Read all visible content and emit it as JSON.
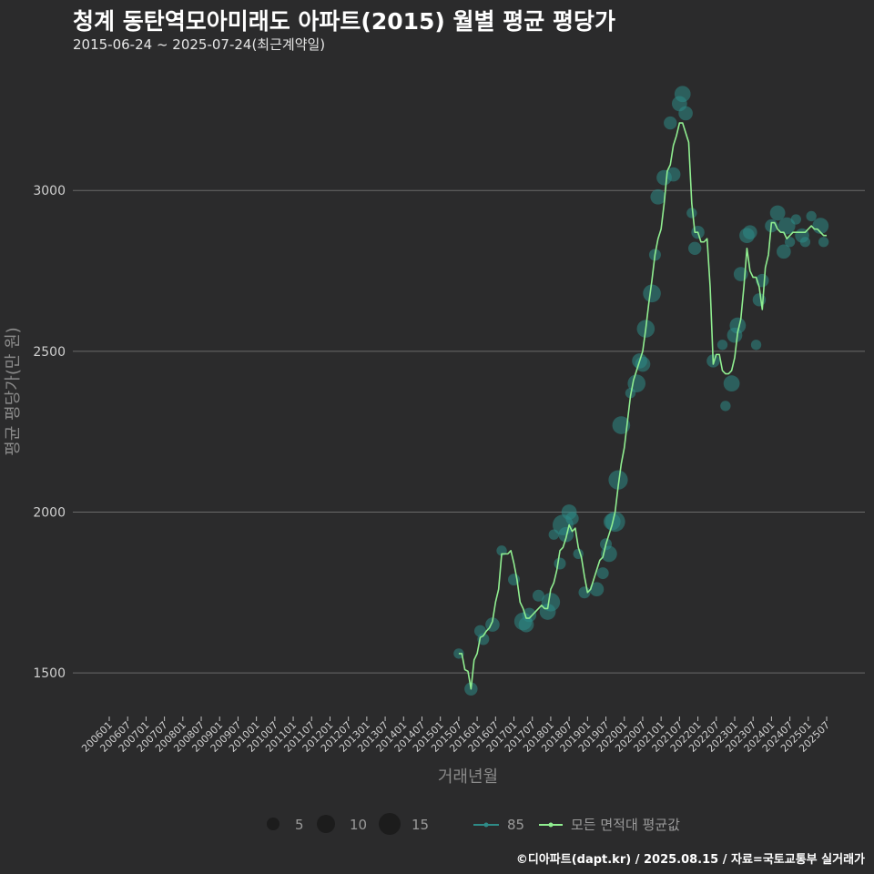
{
  "header": {
    "title": "청계 동탄역모아미래도 아파트(2015) 월별 평균 평당가",
    "subtitle": "2015-06-24 ~ 2025-07-24(최근계약일)"
  },
  "footer": {
    "caption": "©디아파트(dapt.kr) / 2025.08.15 / 자료=국토교통부 실거래가"
  },
  "colors": {
    "background": "#2b2b2c",
    "grid": "#6a6a6a",
    "line": "#90ee90",
    "bubble": "#2e8b87",
    "legend_dot": "#1c1c1c"
  },
  "chart_data": {
    "type": "line",
    "xlabel": "거래년월",
    "ylabel": "평균 평당가(만 원)",
    "ylim": [
      1370,
      3380
    ],
    "yticks": [
      1500,
      2000,
      2500,
      3000
    ],
    "x_start": "2006-01",
    "x_end": "2025-07",
    "xticks": [
      "200601",
      "200607",
      "200701",
      "200707",
      "200801",
      "200807",
      "200901",
      "200907",
      "201001",
      "201007",
      "201101",
      "201107",
      "201201",
      "201207",
      "201301",
      "201307",
      "201401",
      "201407",
      "201501",
      "201507",
      "201601",
      "201607",
      "201701",
      "201707",
      "201801",
      "201807",
      "201901",
      "201907",
      "202001",
      "202007",
      "202101",
      "202107",
      "202201",
      "202207",
      "202301",
      "202307",
      "202401",
      "202407",
      "202501",
      "202507"
    ],
    "legend": {
      "size_entries": [
        5,
        10,
        15
      ],
      "series_labels": [
        "85",
        "모든 면적대 평균값"
      ]
    },
    "series": [
      {
        "name": "모든 면적대 평균값",
        "points": [
          [
            "2015-07",
            1560
          ],
          [
            "2015-08",
            1560
          ],
          [
            "2015-09",
            1510
          ],
          [
            "2015-10",
            1505
          ],
          [
            "2015-11",
            1450
          ],
          [
            "2015-12",
            1540
          ],
          [
            "2016-01",
            1560
          ],
          [
            "2016-02",
            1610
          ],
          [
            "2016-03",
            1615
          ],
          [
            "2016-04",
            1630
          ],
          [
            "2016-05",
            1640
          ],
          [
            "2016-06",
            1660
          ],
          [
            "2016-07",
            1720
          ],
          [
            "2016-08",
            1760
          ],
          [
            "2016-09",
            1870
          ],
          [
            "2016-10",
            1870
          ],
          [
            "2016-11",
            1870
          ],
          [
            "2016-12",
            1880
          ],
          [
            "2017-01",
            1840
          ],
          [
            "2017-02",
            1790
          ],
          [
            "2017-03",
            1720
          ],
          [
            "2017-04",
            1700
          ],
          [
            "2017-05",
            1670
          ],
          [
            "2017-06",
            1670
          ],
          [
            "2017-07",
            1680
          ],
          [
            "2017-08",
            1690
          ],
          [
            "2017-09",
            1700
          ],
          [
            "2017-10",
            1710
          ],
          [
            "2017-11",
            1700
          ],
          [
            "2017-12",
            1700
          ],
          [
            "2018-01",
            1760
          ],
          [
            "2018-02",
            1780
          ],
          [
            "2018-03",
            1820
          ],
          [
            "2018-04",
            1880
          ],
          [
            "2018-05",
            1890
          ],
          [
            "2018-06",
            1920
          ],
          [
            "2018-07",
            1960
          ],
          [
            "2018-08",
            1940
          ],
          [
            "2018-09",
            1950
          ],
          [
            "2018-10",
            1890
          ],
          [
            "2018-11",
            1860
          ],
          [
            "2018-12",
            1800
          ],
          [
            "2019-01",
            1750
          ],
          [
            "2019-02",
            1760
          ],
          [
            "2019-03",
            1790
          ],
          [
            "2019-04",
            1820
          ],
          [
            "2019-05",
            1850
          ],
          [
            "2019-06",
            1860
          ],
          [
            "2019-07",
            1900
          ],
          [
            "2019-08",
            1930
          ],
          [
            "2019-09",
            1960
          ],
          [
            "2019-10",
            2000
          ],
          [
            "2019-11",
            2080
          ],
          [
            "2019-12",
            2150
          ],
          [
            "2020-01",
            2200
          ],
          [
            "2020-02",
            2280
          ],
          [
            "2020-03",
            2360
          ],
          [
            "2020-04",
            2410
          ],
          [
            "2020-05",
            2440
          ],
          [
            "2020-06",
            2470
          ],
          [
            "2020-07",
            2500
          ],
          [
            "2020-08",
            2570
          ],
          [
            "2020-09",
            2650
          ],
          [
            "2020-10",
            2720
          ],
          [
            "2020-11",
            2800
          ],
          [
            "2020-12",
            2850
          ],
          [
            "2021-01",
            2880
          ],
          [
            "2021-02",
            2960
          ],
          [
            "2021-03",
            3060
          ],
          [
            "2021-04",
            3080
          ],
          [
            "2021-05",
            3140
          ],
          [
            "2021-06",
            3170
          ],
          [
            "2021-07",
            3210
          ],
          [
            "2021-08",
            3210
          ],
          [
            "2021-09",
            3180
          ],
          [
            "2021-10",
            3150
          ],
          [
            "2021-11",
            2960
          ],
          [
            "2021-12",
            2870
          ],
          [
            "2022-01",
            2870
          ],
          [
            "2022-02",
            2840
          ],
          [
            "2022-03",
            2840
          ],
          [
            "2022-04",
            2850
          ],
          [
            "2022-05",
            2700
          ],
          [
            "2022-06",
            2460
          ],
          [
            "2022-07",
            2490
          ],
          [
            "2022-08",
            2490
          ],
          [
            "2022-09",
            2440
          ],
          [
            "2022-10",
            2430
          ],
          [
            "2022-11",
            2430
          ],
          [
            "2022-12",
            2440
          ],
          [
            "2023-01",
            2480
          ],
          [
            "2023-02",
            2560
          ],
          [
            "2023-03",
            2600
          ],
          [
            "2023-04",
            2700
          ],
          [
            "2023-05",
            2820
          ],
          [
            "2023-06",
            2750
          ],
          [
            "2023-07",
            2730
          ],
          [
            "2023-08",
            2730
          ],
          [
            "2023-09",
            2700
          ],
          [
            "2023-10",
            2630
          ],
          [
            "2023-11",
            2760
          ],
          [
            "2023-12",
            2800
          ],
          [
            "2024-01",
            2900
          ],
          [
            "2024-02",
            2900
          ],
          [
            "2024-03",
            2880
          ],
          [
            "2024-04",
            2870
          ],
          [
            "2024-05",
            2870
          ],
          [
            "2024-06",
            2850
          ],
          [
            "2024-07",
            2860
          ],
          [
            "2024-08",
            2870
          ],
          [
            "2024-09",
            2870
          ],
          [
            "2024-10",
            2870
          ],
          [
            "2024-11",
            2870
          ],
          [
            "2024-12",
            2870
          ],
          [
            "2025-01",
            2880
          ],
          [
            "2025-02",
            2890
          ],
          [
            "2025-03",
            2880
          ],
          [
            "2025-04",
            2880
          ],
          [
            "2025-05",
            2870
          ],
          [
            "2025-06",
            2860
          ],
          [
            "2025-07",
            2860
          ]
        ]
      },
      {
        "name": "85",
        "bubbles": [
          [
            "2015-07",
            1560,
            2
          ],
          [
            "2015-11",
            1450,
            4
          ],
          [
            "2016-02",
            1630,
            3
          ],
          [
            "2016-03",
            1605,
            3
          ],
          [
            "2016-06",
            1650,
            5
          ],
          [
            "2016-09",
            1880,
            2
          ],
          [
            "2017-01",
            1790,
            3
          ],
          [
            "2017-04",
            1660,
            9
          ],
          [
            "2017-05",
            1650,
            6
          ],
          [
            "2017-06",
            1680,
            5
          ],
          [
            "2017-09",
            1740,
            3
          ],
          [
            "2017-12",
            1690,
            7
          ],
          [
            "2018-01",
            1720,
            10
          ],
          [
            "2018-02",
            1930,
            2
          ],
          [
            "2018-04",
            1840,
            3
          ],
          [
            "2018-05",
            1960,
            13
          ],
          [
            "2018-06",
            1930,
            6
          ],
          [
            "2018-07",
            2000,
            6
          ],
          [
            "2018-08",
            1980,
            4
          ],
          [
            "2018-10",
            1870,
            2
          ],
          [
            "2018-12",
            1750,
            3
          ],
          [
            "2019-04",
            1760,
            5
          ],
          [
            "2019-06",
            1810,
            3
          ],
          [
            "2019-07",
            1900,
            3
          ],
          [
            "2019-08",
            1870,
            7
          ],
          [
            "2019-09",
            1970,
            8
          ],
          [
            "2019-10",
            1970,
            12
          ],
          [
            "2019-11",
            2100,
            11
          ],
          [
            "2019-12",
            2270,
            9
          ],
          [
            "2020-03",
            2370,
            2
          ],
          [
            "2020-05",
            2400,
            9
          ],
          [
            "2020-06",
            2470,
            6
          ],
          [
            "2020-07",
            2460,
            6
          ],
          [
            "2020-08",
            2570,
            9
          ],
          [
            "2020-10",
            2680,
            9
          ],
          [
            "2020-11",
            2800,
            3
          ],
          [
            "2020-12",
            2980,
            6
          ],
          [
            "2021-02",
            3040,
            6
          ],
          [
            "2021-04",
            3210,
            4
          ],
          [
            "2021-05",
            3050,
            5
          ],
          [
            "2021-07",
            3270,
            6
          ],
          [
            "2021-08",
            3300,
            7
          ],
          [
            "2021-09",
            3240,
            5
          ],
          [
            "2021-11",
            2930,
            2
          ],
          [
            "2021-12",
            2820,
            4
          ],
          [
            "2022-01",
            2870,
            4
          ],
          [
            "2022-06",
            2470,
            4
          ],
          [
            "2022-09",
            2520,
            2
          ],
          [
            "2022-10",
            2330,
            2
          ],
          [
            "2022-12",
            2400,
            7
          ],
          [
            "2023-01",
            2550,
            6
          ],
          [
            "2023-02",
            2580,
            7
          ],
          [
            "2023-03",
            2740,
            5
          ],
          [
            "2023-05",
            2860,
            6
          ],
          [
            "2023-06",
            2870,
            5
          ],
          [
            "2023-08",
            2520,
            2
          ],
          [
            "2023-09",
            2660,
            4
          ],
          [
            "2023-10",
            2720,
            4
          ],
          [
            "2024-01",
            2890,
            4
          ],
          [
            "2024-03",
            2930,
            6
          ],
          [
            "2024-05",
            2810,
            5
          ],
          [
            "2024-06",
            2890,
            8
          ],
          [
            "2024-07",
            2840,
            2
          ],
          [
            "2024-09",
            2910,
            2
          ],
          [
            "2024-11",
            2860,
            5
          ],
          [
            "2024-12",
            2840,
            2
          ],
          [
            "2025-02",
            2920,
            2
          ],
          [
            "2025-05",
            2890,
            7
          ],
          [
            "2025-06",
            2840,
            2
          ]
        ]
      }
    ]
  }
}
